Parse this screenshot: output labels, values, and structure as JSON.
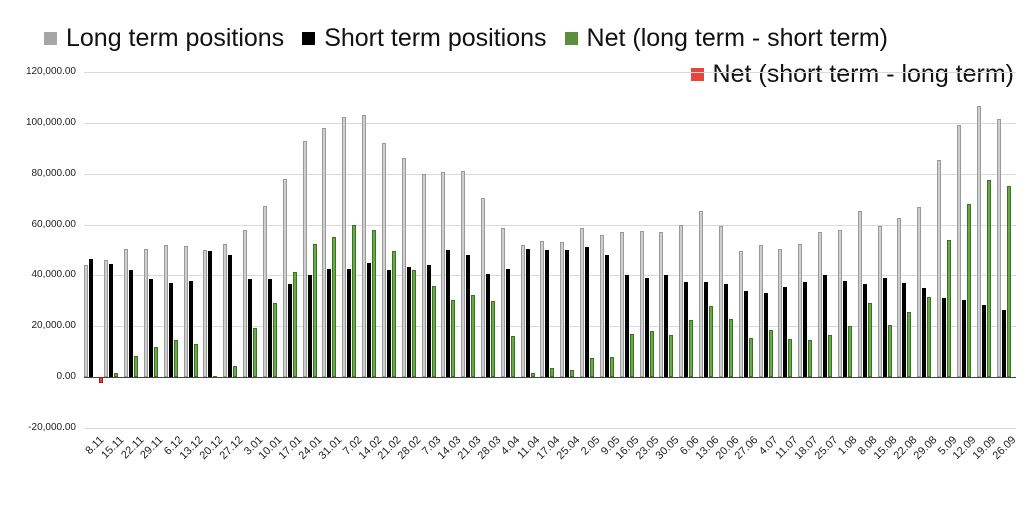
{
  "chart_data": {
    "type": "bar",
    "title": "",
    "xlabel": "",
    "ylabel": "",
    "grid": true,
    "legend_position": "top",
    "ylim": [
      -20000,
      120000
    ],
    "yticks": [
      {
        "value": 120000,
        "label": "120,000.00"
      },
      {
        "value": 100000,
        "label": "100,000.00"
      },
      {
        "value": 80000,
        "label": "80,000.00"
      },
      {
        "value": 60000,
        "label": "60,000.00"
      },
      {
        "value": 40000,
        "label": "40,000.00"
      },
      {
        "value": 20000,
        "label": "20,000.00"
      },
      {
        "value": 0,
        "label": "0.00"
      },
      {
        "value": -20000,
        "label": "-20,000.00"
      }
    ],
    "categories": [
      "8.11",
      "15.11",
      "22.11",
      "29.11",
      "6.12",
      "13.12",
      "20.12",
      "27.12",
      "3.01",
      "10.01",
      "17.01",
      "24.01",
      "31.01",
      "7.02",
      "14.02",
      "21.02",
      "28.02",
      "7.03",
      "14.03",
      "21.03",
      "28.03",
      "4.04",
      "11.04",
      "17.04",
      "25.04",
      "2.05",
      "9.05",
      "16.05",
      "23.05",
      "30.05",
      "6.06",
      "13.06",
      "20.06",
      "27.06",
      "4.07",
      "11.07",
      "18.07",
      "25.07",
      "1.08",
      "8.08",
      "15.08",
      "22.08",
      "29.08",
      "5.09",
      "12.09",
      "19.09",
      "26.09"
    ],
    "series": [
      {
        "name": "Long term positions",
        "color": "#cfcfcf",
        "swatch": "#a6a6a6",
        "values": [
          44000,
          46000,
          50500,
          50500,
          52000,
          51500,
          50000,
          52500,
          58000,
          67500,
          78000,
          93000,
          98000,
          102500,
          103000,
          92000,
          86000,
          80000,
          80500,
          81000,
          70500,
          58500,
          52000,
          53500,
          53000,
          58500,
          56000,
          57000,
          57500,
          57000,
          60000,
          65500,
          59500,
          49500,
          52000,
          50500,
          52500,
          57000,
          58000,
          65500,
          59500,
          62500,
          67000,
          85500,
          99000,
          106500,
          101500
        ]
      },
      {
        "name": "Short term positions",
        "color": "#000000",
        "swatch": "#000000",
        "values": [
          46500,
          44500,
          42000,
          38500,
          37000,
          38000,
          49500,
          48000,
          38500,
          38500,
          36500,
          40000,
          42500,
          42500,
          45000,
          42000,
          43500,
          44000,
          50000,
          48000,
          40500,
          42500,
          50500,
          50000,
          50000,
          51000,
          48000,
          40000,
          39000,
          40000,
          37500,
          37500,
          36500,
          34000,
          33000,
          35500,
          37500,
          40000,
          38000,
          36500,
          39000,
          37000,
          35000,
          31000,
          30500,
          28500,
          26500
        ]
      },
      {
        "name": "Net (long term - short term)",
        "color": "#6aa84f",
        "swatch": "#5b8f3c",
        "values": [
          0,
          1500,
          8500,
          12000,
          14500,
          13000,
          500,
          4500,
          19500,
          29000,
          41500,
          52500,
          55000,
          60000,
          58000,
          49500,
          42000,
          36000,
          30500,
          32500,
          30000,
          16000,
          1500,
          3500,
          3000,
          7500,
          8000,
          17000,
          18000,
          16500,
          22500,
          28000,
          23000,
          15500,
          18500,
          15000,
          14500,
          16500,
          20000,
          29000,
          20500,
          25500,
          31500,
          54000,
          68000,
          77500,
          75000
        ]
      },
      {
        "name": "Net (short term - long term)",
        "color": "#ea4335",
        "swatch": "#e8453c",
        "values": [
          2500,
          0,
          0,
          0,
          0,
          0,
          0,
          0,
          0,
          0,
          0,
          0,
          0,
          0,
          0,
          0,
          0,
          0,
          0,
          0,
          0,
          0,
          0,
          0,
          0,
          0,
          0,
          0,
          0,
          0,
          0,
          0,
          0,
          0,
          0,
          0,
          0,
          0,
          0,
          0,
          0,
          0,
          0,
          0,
          0,
          0,
          0
        ]
      }
    ]
  }
}
